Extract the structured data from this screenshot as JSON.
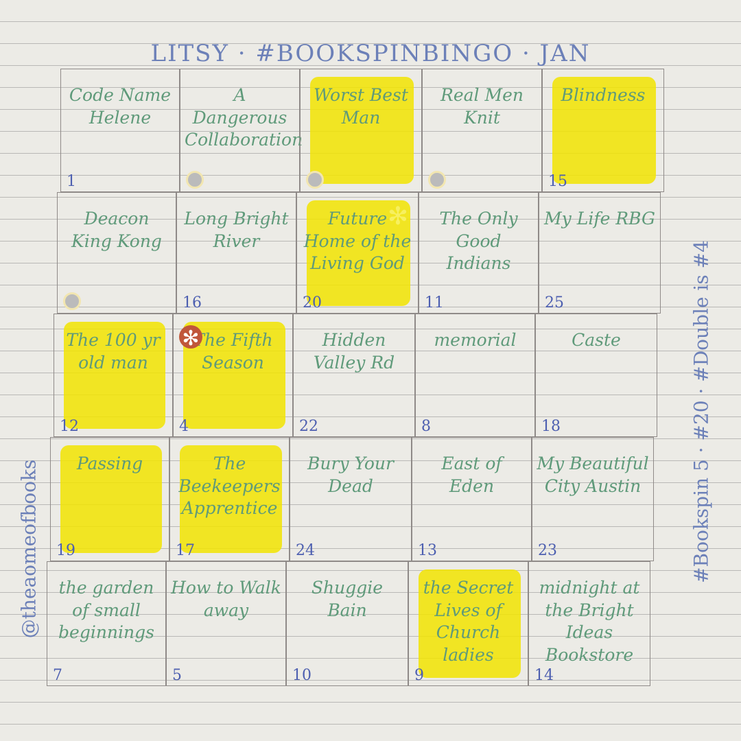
{
  "header": {
    "title": "LITSY · #BOOKSPINBINGO · JAN"
  },
  "side_left": "@theaomeofbooks",
  "side_right": "#Bookspin 5 · #20 · #Double is #4",
  "grid": {
    "rows": [
      [
        {
          "title": "Code Name Helene",
          "number": "1",
          "done": false
        },
        {
          "title": "A Dangerous Collaboration",
          "sticker": true,
          "done": false
        },
        {
          "title": "Worst Best Man",
          "sticker": true,
          "done": true
        },
        {
          "title": "Real Men Knit",
          "sticker": true,
          "done": false
        },
        {
          "title": "Blindness",
          "number": "15",
          "done": true
        }
      ],
      [
        {
          "title": "Deacon King Kong",
          "sticker": true,
          "done": false
        },
        {
          "title": "Long Bright River",
          "number": "16",
          "done": false
        },
        {
          "title": "Future Home of the Living God",
          "number": "20",
          "done": true,
          "star": true
        },
        {
          "title": "The Only Good Indians",
          "number": "11",
          "done": false
        },
        {
          "title": "My Life RBG",
          "number": "25",
          "done": false
        }
      ],
      [
        {
          "title": "The 100 yr old man",
          "number": "12",
          "done": true
        },
        {
          "title": "The Fifth Season",
          "number": "4",
          "done": true,
          "flower": true
        },
        {
          "title": "Hidden Valley Rd",
          "number": "22",
          "done": false
        },
        {
          "title": "memorial",
          "number": "8",
          "done": false
        },
        {
          "title": "Caste",
          "number": "18",
          "done": false
        }
      ],
      [
        {
          "title": "Passing",
          "number": "19",
          "done": true
        },
        {
          "title": "The Beekeepers Apprentice",
          "number": "17",
          "done": true
        },
        {
          "title": "Bury Your Dead",
          "number": "24",
          "done": false
        },
        {
          "title": "East of Eden",
          "number": "13",
          "done": false
        },
        {
          "title": "My Beautiful City Austin",
          "number": "23",
          "done": false
        }
      ],
      [
        {
          "title": "the garden of small beginnings",
          "number": "7",
          "done": false
        },
        {
          "title": "How to Walk away",
          "number": "5",
          "done": false
        },
        {
          "title": "Shuggie Bain",
          "number": "10",
          "done": false
        },
        {
          "title": "the Secret Lives of Church ladies",
          "number": "9",
          "done": true
        },
        {
          "title": "midnight at the Bright Ideas Bookstore",
          "number": "14",
          "done": false
        }
      ]
    ]
  }
}
